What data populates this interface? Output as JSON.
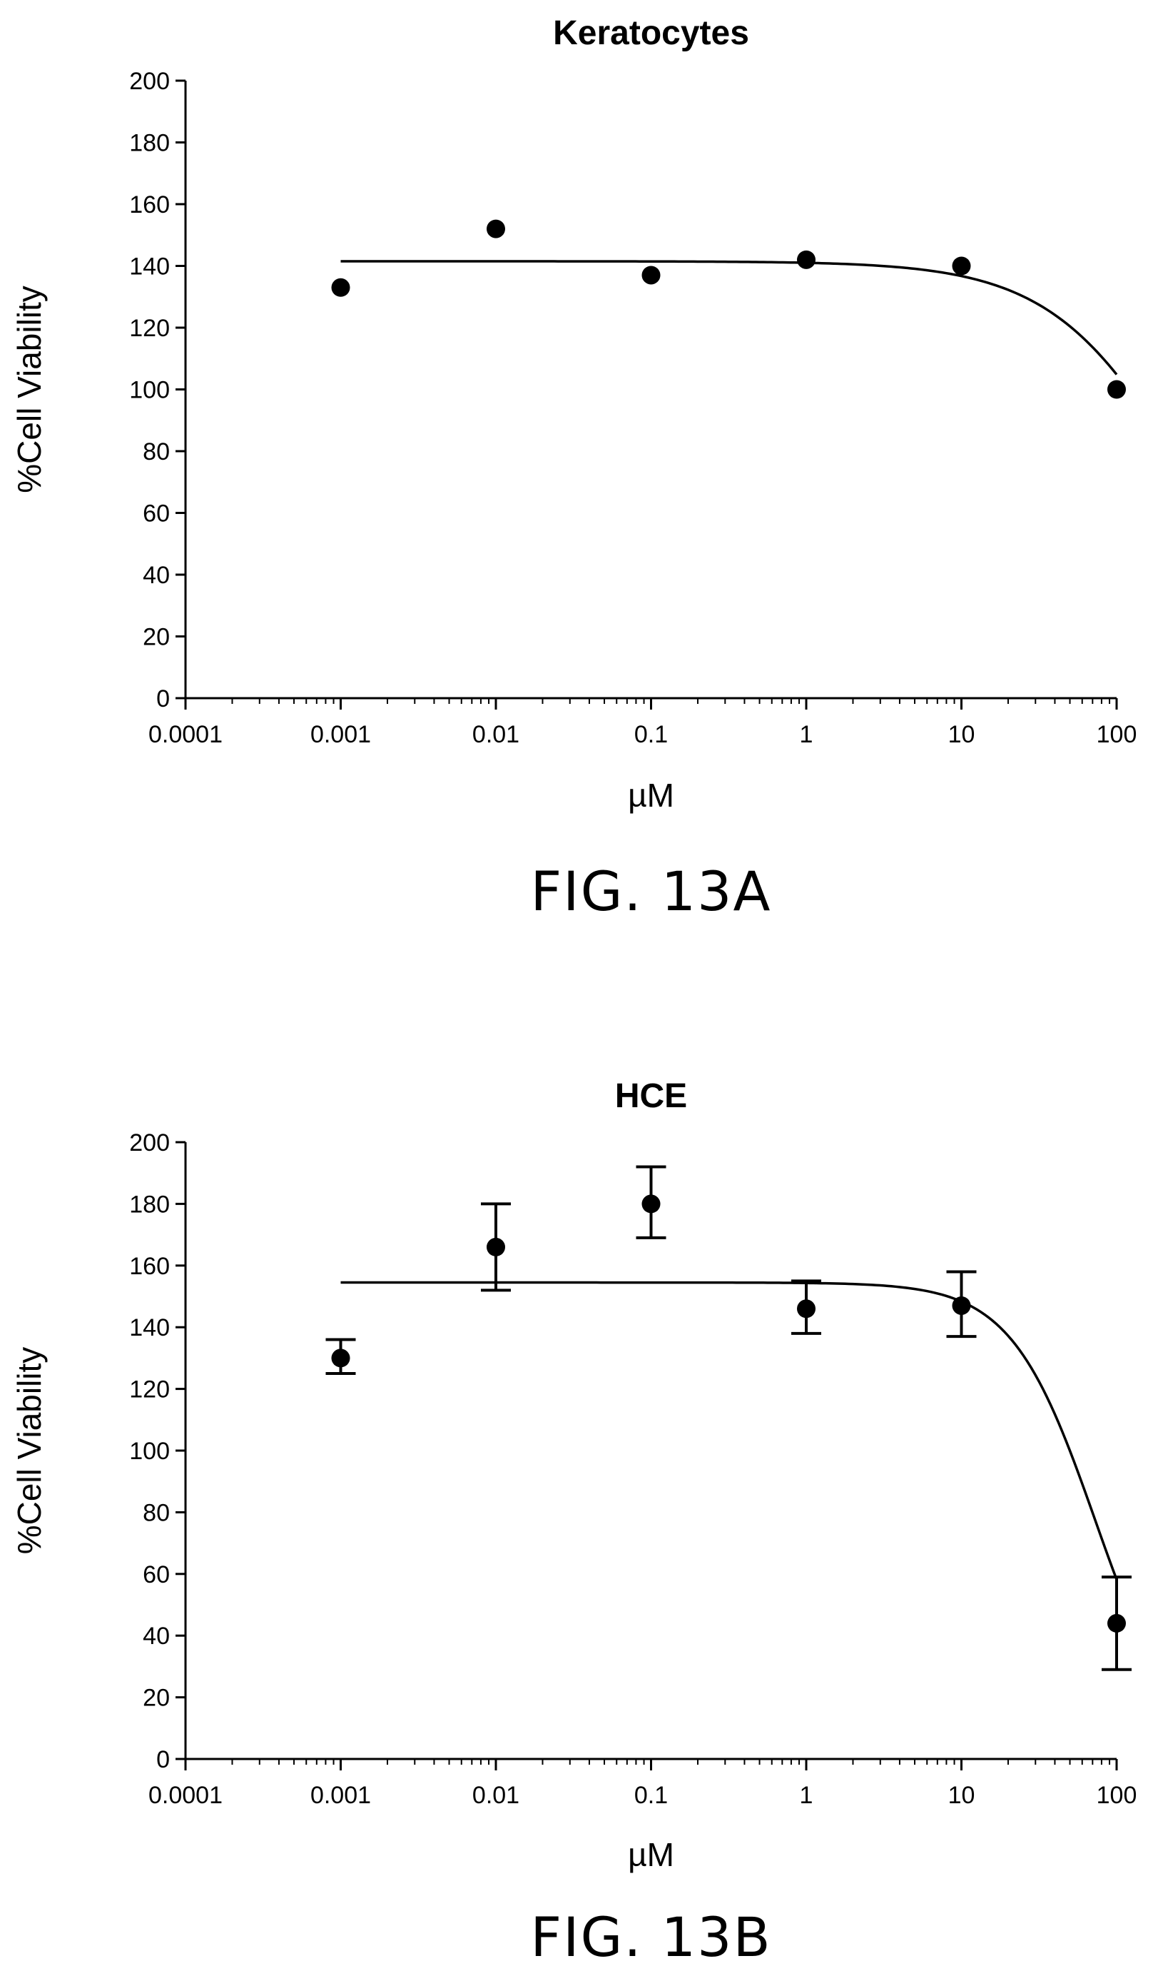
{
  "chart_data": [
    {
      "type": "scatter",
      "title": "Keratocytes",
      "xlabel": "µM",
      "ylabel": "%Cell Viability",
      "xscale": "log",
      "xlim": [
        0.0001,
        100
      ],
      "ylim": [
        0,
        200
      ],
      "x_ticks": [
        "0.0001",
        "0.001",
        "0.01",
        "0.1",
        "1",
        "10",
        "100"
      ],
      "y_ticks": [
        "0",
        "20",
        "40",
        "60",
        "80",
        "100",
        "120",
        "140",
        "160",
        "180",
        "200"
      ],
      "figure_label": "FIG. 13A",
      "points": [
        {
          "x": 0.001,
          "y": 133
        },
        {
          "x": 0.01,
          "y": 152
        },
        {
          "x": 0.1,
          "y": 137
        },
        {
          "x": 1,
          "y": 142
        },
        {
          "x": 10,
          "y": 140
        },
        {
          "x": 100,
          "y": 100
        }
      ],
      "fit_curve": {
        "top": 141.5,
        "bottom": 0,
        "ic50": 286,
        "hill": 1.0
      }
    },
    {
      "type": "scatter",
      "title": "HCE",
      "xlabel": "µM",
      "ylabel": "%Cell Viability",
      "xscale": "log",
      "xlim": [
        0.0001,
        100
      ],
      "ylim": [
        0,
        200
      ],
      "x_ticks": [
        "0.0001",
        "0.001",
        "0.01",
        "0.1",
        "1",
        "10",
        "100"
      ],
      "y_ticks": [
        "0",
        "20",
        "40",
        "60",
        "80",
        "100",
        "120",
        "140",
        "160",
        "180",
        "200"
      ],
      "figure_label": "FIG. 13B",
      "points": [
        {
          "x": 0.001,
          "y": 130,
          "err_low": 125,
          "err_high": 136
        },
        {
          "x": 0.01,
          "y": 166,
          "err_low": 152,
          "err_high": 180
        },
        {
          "x": 0.1,
          "y": 180,
          "err_low": 169,
          "err_high": 192
        },
        {
          "x": 1,
          "y": 146,
          "err_low": 138,
          "err_high": 155
        },
        {
          "x": 10,
          "y": 147,
          "err_low": 137,
          "err_high": 158
        },
        {
          "x": 100,
          "y": 44,
          "err_low": 29,
          "err_high": 59
        }
      ],
      "fit_curve": {
        "top": 154.5,
        "bottom": 0,
        "ic50": 73,
        "hill": 1.6
      }
    }
  ]
}
